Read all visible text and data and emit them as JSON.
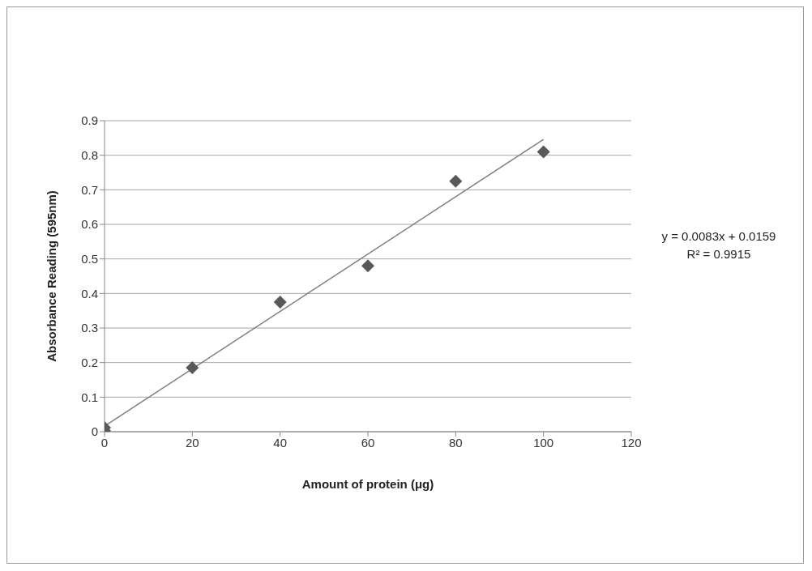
{
  "chart_data": {
    "type": "scatter",
    "xlabel": "Amount of protein (μg)",
    "ylabel": "Absorbance Reading (595nm)",
    "series": [
      {
        "marker": "diamond",
        "color": "#595959",
        "x": [
          0,
          0,
          20,
          40,
          60,
          80,
          100
        ],
        "values": [
          0.003,
          0.012,
          0.185,
          0.375,
          0.48,
          0.725,
          0.81
        ]
      },
      {
        "type": "line",
        "marker": "none",
        "color": "#7f7f7f",
        "x": [
          0,
          100
        ],
        "values": [
          0.016,
          0.846
        ]
      }
    ],
    "xlim": [
      0,
      120
    ],
    "xticks": [
      0,
      20,
      40,
      60,
      80,
      100,
      120
    ],
    "ylim": [
      0,
      0.9
    ],
    "yticks": [
      0,
      0.1,
      0.2,
      0.3,
      0.4,
      0.5,
      0.6,
      0.7,
      0.8,
      0.9
    ],
    "grid": "y",
    "line_style": "solid",
    "annotations": [
      "y = 0.0083x + 0.0159",
      "R² = 0.9915"
    ]
  }
}
